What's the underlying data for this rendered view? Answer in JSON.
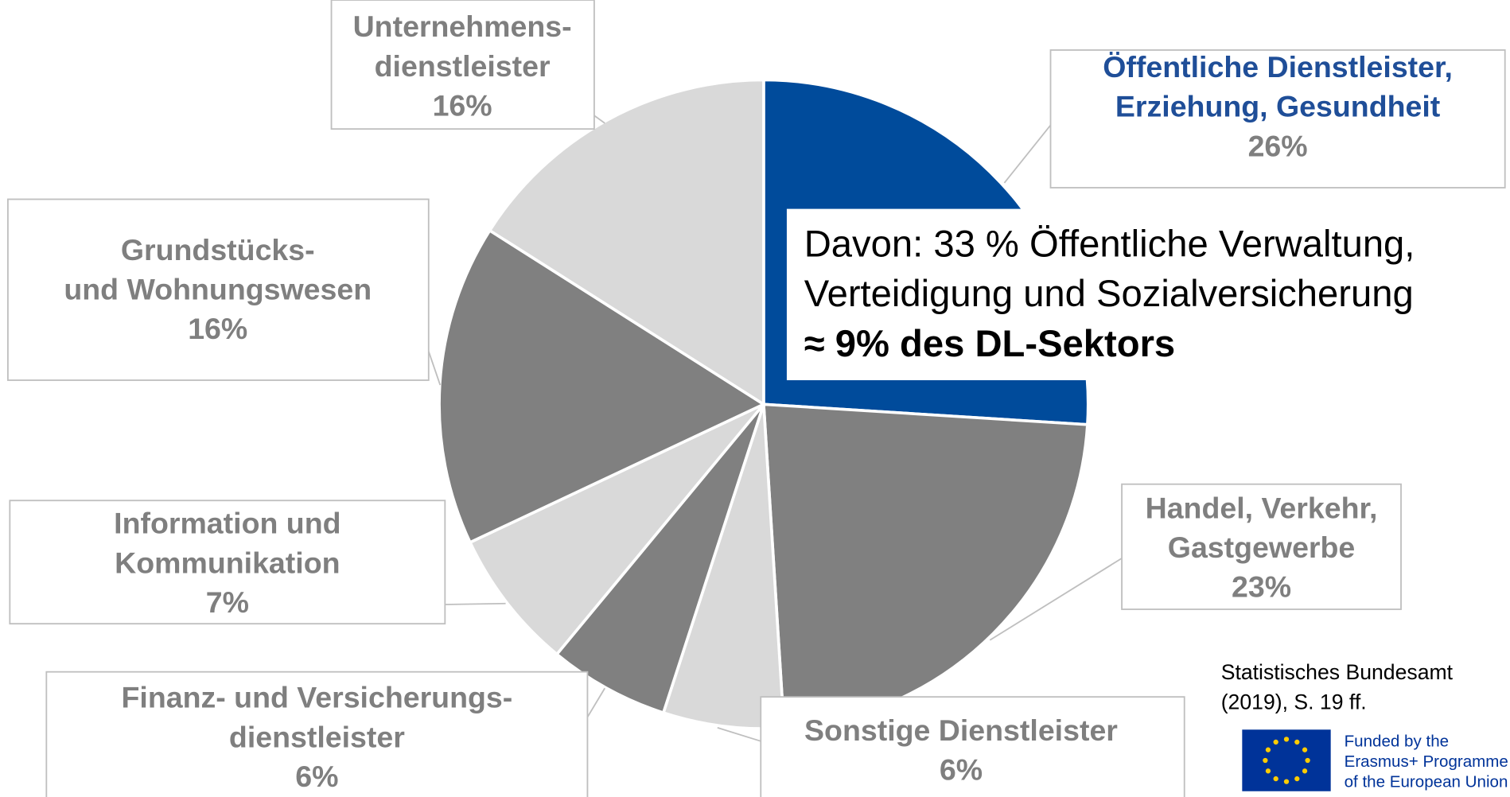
{
  "chart_data": {
    "type": "pie",
    "categories": [
      [
        "Öffentliche Dienstleister,",
        "Erziehung, Gesundheit"
      ],
      [
        "Handel, Verkehr,",
        "Gastgewerbe"
      ],
      [
        "Sonstige Dienstleister"
      ],
      [
        "Finanz- und Versicherungs-",
        "dienstleister"
      ],
      [
        "Information und",
        "Kommunikation"
      ],
      [
        "Grundstücks-",
        "und Wohnungswesen"
      ],
      [
        "Unternehmens-",
        "dienstleister"
      ]
    ],
    "values": [
      26,
      23,
      6,
      6,
      7,
      16,
      16
    ],
    "value_labels": [
      "26%",
      "23%",
      "6%",
      "6%",
      "7%",
      "16%",
      "16%"
    ],
    "colors": [
      "#004b9b",
      "#808080",
      "#d9d9d9",
      "#808080",
      "#d9d9d9",
      "#808080",
      "#d9d9d9"
    ],
    "highlight_label_color": "#1f4e98",
    "annotation": [
      "Davon: 33 % Öffentliche Verwaltung,",
      "Verteidigung und Sozialversicherung",
      "≈ 9% des DL-Sektors"
    ],
    "source": [
      "Statistisches Bundesamt",
      "(2019), S. 19 ff."
    ],
    "logo_text": [
      "Funded by the",
      "Erasmus+ Programme",
      "of the European Union"
    ]
  }
}
